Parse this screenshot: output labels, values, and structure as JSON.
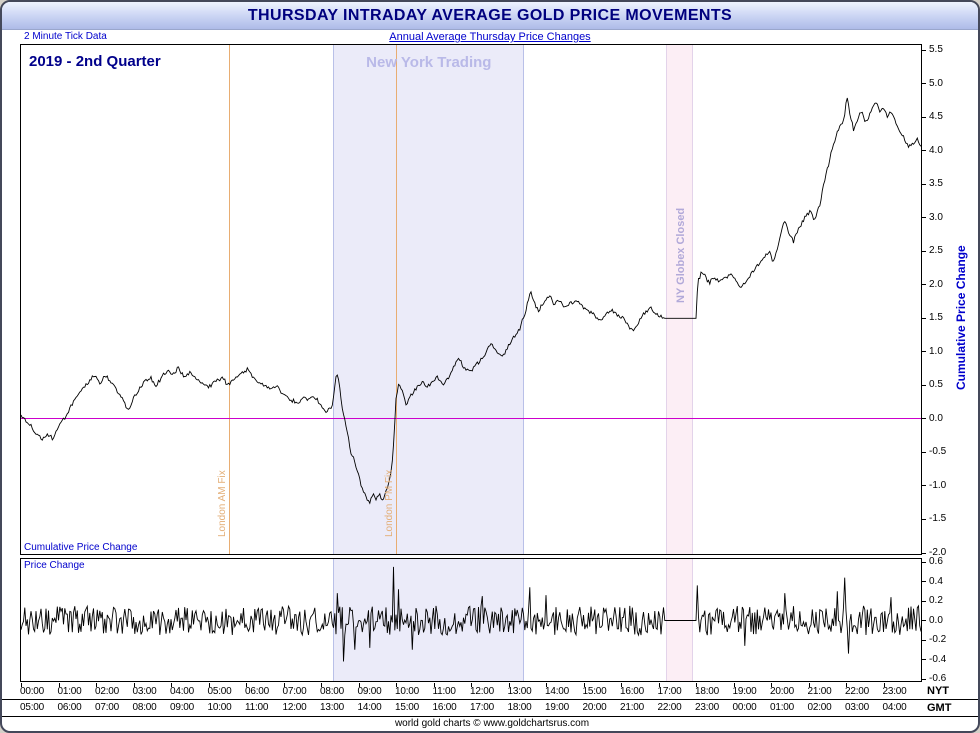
{
  "title": "THURSDAY INTRADAY AVERAGE GOLD PRICE MOVEMENTS",
  "subtitle_left": "2 Minute Tick Data",
  "subtitle_center": "Annual Average Thursday Price Changes",
  "footer": "world gold charts © www.goldchartsrus.com",
  "labels": {
    "quarter": "2019 - 2nd Quarter",
    "ny_trading": "New York Trading",
    "globex": "NY Globex Closed",
    "london_am": "London AM Fix",
    "london_pm": "London PM Fix",
    "cumulative": "Cumulative Price Change",
    "price_change": "Price Change",
    "right_axis": "Cumulative Price Change",
    "nyt": "NYT",
    "gmt": "GMT"
  },
  "colors": {
    "title_text": "#00007e",
    "subtitle_text": "#0000cc",
    "price_line": "#000000",
    "zero_line": "#cc00cc",
    "ny_band": "#ebebf9",
    "ny_band_border": "#b9c0e8",
    "globex_band": "#fceef5",
    "globex_band_border": "#e3d3ea",
    "globex_text": "#b2a9d9",
    "london_fix_line": "#e8ad72",
    "london_fix_text": "#e3ae77",
    "ny_trading_text": "#b9b9e8",
    "quarter_text": "#00008b",
    "axis_title_text": "#0000cc"
  },
  "chart_data": {
    "type": "line",
    "title": "Thursday Intraday Average Gold Price Movements, 2019 2nd Quarter",
    "x_axis": {
      "unit": "hour",
      "range": [
        0,
        24
      ],
      "nyt_labels": [
        "00:00",
        "01:00",
        "02:00",
        "03:00",
        "04:00",
        "05:00",
        "06:00",
        "07:00",
        "08:00",
        "09:00",
        "10:00",
        "11:00",
        "12:00",
        "13:00",
        "14:00",
        "15:00",
        "16:00",
        "17:00",
        "18:00",
        "19:00",
        "20:00",
        "21:00",
        "22:00",
        "23:00"
      ],
      "gmt_labels": [
        "05:00",
        "06:00",
        "07:00",
        "08:00",
        "09:00",
        "10:00",
        "11:00",
        "12:00",
        "13:00",
        "14:00",
        "15:00",
        "16:00",
        "17:00",
        "18:00",
        "19:00",
        "20:00",
        "21:00",
        "22:00",
        "23:00",
        "00:00",
        "01:00",
        "02:00",
        "03:00",
        "04:00"
      ]
    },
    "regions": {
      "ny_trading": [
        8.33,
        13.42
      ],
      "globex_closed": [
        17.2,
        17.93
      ]
    },
    "vlines": {
      "london_am_fix": 5.55,
      "london_pm_fix": 10.0
    },
    "zero_line": 0.0,
    "main": {
      "ylabel": "Cumulative Price Change",
      "ylim": [
        -2.0,
        5.5
      ],
      "tick_step": 0.5,
      "tick_labels": [
        "5.5",
        "5.0",
        "4.5",
        "4.0",
        "3.5",
        "3.0",
        "2.5",
        "2.0",
        "1.5",
        "1.0",
        "0.5",
        "0.0",
        "-0.5",
        "-1.0",
        "-1.5",
        "-2.0"
      ],
      "series": [
        {
          "name": "cumulative_price_change",
          "jitter": 0.03,
          "jitter_seed": 5,
          "flat": [
            [
              17.15,
              18.0
            ]
          ],
          "points": [
            [
              0,
              0.05
            ],
            [
              0.2,
              -0.05
            ],
            [
              0.35,
              -0.18
            ],
            [
              0.55,
              -0.3
            ],
            [
              0.7,
              -0.22
            ],
            [
              0.85,
              -0.3
            ],
            [
              1.0,
              -0.12
            ],
            [
              1.2,
              0.05
            ],
            [
              1.4,
              0.25
            ],
            [
              1.6,
              0.4
            ],
            [
              1.8,
              0.55
            ],
            [
              1.95,
              0.65
            ],
            [
              2.1,
              0.52
            ],
            [
              2.25,
              0.65
            ],
            [
              2.4,
              0.55
            ],
            [
              2.55,
              0.42
            ],
            [
              2.7,
              0.3
            ],
            [
              2.85,
              0.12
            ],
            [
              3.0,
              0.3
            ],
            [
              3.15,
              0.45
            ],
            [
              3.3,
              0.55
            ],
            [
              3.45,
              0.62
            ],
            [
              3.6,
              0.5
            ],
            [
              3.75,
              0.62
            ],
            [
              3.9,
              0.72
            ],
            [
              4.05,
              0.65
            ],
            [
              4.2,
              0.78
            ],
            [
              4.35,
              0.6
            ],
            [
              4.5,
              0.68
            ],
            [
              4.65,
              0.6
            ],
            [
              4.8,
              0.52
            ],
            [
              5.0,
              0.48
            ],
            [
              5.2,
              0.55
            ],
            [
              5.35,
              0.62
            ],
            [
              5.5,
              0.52
            ],
            [
              5.7,
              0.58
            ],
            [
              5.9,
              0.68
            ],
            [
              6.05,
              0.75
            ],
            [
              6.2,
              0.6
            ],
            [
              6.4,
              0.52
            ],
            [
              6.6,
              0.45
            ],
            [
              6.8,
              0.5
            ],
            [
              7.0,
              0.35
            ],
            [
              7.2,
              0.28
            ],
            [
              7.4,
              0.24
            ],
            [
              7.55,
              0.33
            ],
            [
              7.7,
              0.28
            ],
            [
              7.85,
              0.33
            ],
            [
              8.0,
              0.2
            ],
            [
              8.15,
              0.1
            ],
            [
              8.3,
              0.18
            ],
            [
              8.42,
              0.72
            ],
            [
              8.5,
              0.45
            ],
            [
              8.6,
              0.05
            ],
            [
              8.7,
              -0.2
            ],
            [
              8.8,
              -0.5
            ],
            [
              8.9,
              -0.62
            ],
            [
              9.0,
              -0.85
            ],
            [
              9.1,
              -1.05
            ],
            [
              9.2,
              -1.18
            ],
            [
              9.3,
              -1.28
            ],
            [
              9.38,
              -1.1
            ],
            [
              9.45,
              -1.22
            ],
            [
              9.55,
              -1.12
            ],
            [
              9.65,
              -1.2
            ],
            [
              9.75,
              -1.05
            ],
            [
              9.85,
              -0.85
            ],
            [
              9.92,
              -0.55
            ],
            [
              10.0,
              0.3
            ],
            [
              10.08,
              0.55
            ],
            [
              10.18,
              0.38
            ],
            [
              10.28,
              0.2
            ],
            [
              10.4,
              0.35
            ],
            [
              10.5,
              0.42
            ],
            [
              10.6,
              0.5
            ],
            [
              10.7,
              0.56
            ],
            [
              10.82,
              0.45
            ],
            [
              10.95,
              0.55
            ],
            [
              11.1,
              0.62
            ],
            [
              11.25,
              0.5
            ],
            [
              11.4,
              0.62
            ],
            [
              11.55,
              0.78
            ],
            [
              11.68,
              0.9
            ],
            [
              11.8,
              0.78
            ],
            [
              11.95,
              0.7
            ],
            [
              12.1,
              0.78
            ],
            [
              12.3,
              0.9
            ],
            [
              12.45,
              1.05
            ],
            [
              12.55,
              1.12
            ],
            [
              12.7,
              1.0
            ],
            [
              12.85,
              0.95
            ],
            [
              13.0,
              1.08
            ],
            [
              13.15,
              1.22
            ],
            [
              13.3,
              1.35
            ],
            [
              13.45,
              1.6
            ],
            [
              13.58,
              1.9
            ],
            [
              13.7,
              1.72
            ],
            [
              13.8,
              1.62
            ],
            [
              13.95,
              1.75
            ],
            [
              14.1,
              1.85
            ],
            [
              14.2,
              1.72
            ],
            [
              14.35,
              1.78
            ],
            [
              14.5,
              1.65
            ],
            [
              14.65,
              1.72
            ],
            [
              14.8,
              1.78
            ],
            [
              14.95,
              1.68
            ],
            [
              15.1,
              1.62
            ],
            [
              15.3,
              1.55
            ],
            [
              15.45,
              1.45
            ],
            [
              15.6,
              1.58
            ],
            [
              15.75,
              1.62
            ],
            [
              15.9,
              1.55
            ],
            [
              16.05,
              1.5
            ],
            [
              16.2,
              1.38
            ],
            [
              16.35,
              1.3
            ],
            [
              16.5,
              1.48
            ],
            [
              16.65,
              1.6
            ],
            [
              16.8,
              1.65
            ],
            [
              16.95,
              1.55
            ],
            [
              17.1,
              1.52
            ],
            [
              17.15,
              1.5
            ],
            [
              18.0,
              1.5
            ],
            [
              18.05,
              2.05
            ],
            [
              18.15,
              2.18
            ],
            [
              18.25,
              2.12
            ],
            [
              18.35,
              2.02
            ],
            [
              18.45,
              2.1
            ],
            [
              18.6,
              2.05
            ],
            [
              18.75,
              2.1
            ],
            [
              18.9,
              2.15
            ],
            [
              19.05,
              2.08
            ],
            [
              19.2,
              1.95
            ],
            [
              19.35,
              2.05
            ],
            [
              19.5,
              2.18
            ],
            [
              19.65,
              2.3
            ],
            [
              19.8,
              2.42
            ],
            [
              19.95,
              2.5
            ],
            [
              20.05,
              2.35
            ],
            [
              20.2,
              2.6
            ],
            [
              20.35,
              2.98
            ],
            [
              20.45,
              2.8
            ],
            [
              20.6,
              2.65
            ],
            [
              20.75,
              2.85
            ],
            [
              20.9,
              3.0
            ],
            [
              21.05,
              3.1
            ],
            [
              21.15,
              2.95
            ],
            [
              21.3,
              3.2
            ],
            [
              21.45,
              3.6
            ],
            [
              21.6,
              3.95
            ],
            [
              21.75,
              4.25
            ],
            [
              21.85,
              4.38
            ],
            [
              21.95,
              4.45
            ],
            [
              22.02,
              4.85
            ],
            [
              22.1,
              4.55
            ],
            [
              22.2,
              4.32
            ],
            [
              22.32,
              4.48
            ],
            [
              22.42,
              4.62
            ],
            [
              22.52,
              4.42
            ],
            [
              22.65,
              4.55
            ],
            [
              22.78,
              4.75
            ],
            [
              22.9,
              4.58
            ],
            [
              23.0,
              4.62
            ],
            [
              23.1,
              4.52
            ],
            [
              23.2,
              4.56
            ],
            [
              23.3,
              4.45
            ],
            [
              23.42,
              4.32
            ],
            [
              23.55,
              4.18
            ],
            [
              23.68,
              4.05
            ],
            [
              23.8,
              4.12
            ],
            [
              23.9,
              4.18
            ],
            [
              24.0,
              4.05
            ]
          ]
        }
      ]
    },
    "lower": {
      "ylabel": "Price Change",
      "ylim": [
        -0.6,
        0.6
      ],
      "tick_step": 0.2,
      "tick_labels": [
        "0.6",
        "0.4",
        "0.2",
        "0.0",
        "-0.2",
        "-0.4",
        "-0.6"
      ],
      "series": [
        {
          "name": "price_change_per_tick",
          "noise_amp": 0.15,
          "noise_seed": 11,
          "flat": [
            [
              17.15,
              18.0
            ]
          ],
          "spikes": [
            [
              8.42,
              0.28
            ],
            [
              8.6,
              -0.42
            ],
            [
              8.9,
              -0.3
            ],
            [
              9.3,
              -0.28
            ],
            [
              9.93,
              0.55
            ],
            [
              10.08,
              0.32
            ],
            [
              10.45,
              -0.3
            ],
            [
              12.3,
              0.25
            ],
            [
              13.55,
              0.34
            ],
            [
              14.0,
              0.26
            ],
            [
              18.03,
              0.36
            ],
            [
              19.3,
              -0.26
            ],
            [
              20.35,
              0.28
            ],
            [
              21.75,
              0.3
            ],
            [
              21.95,
              0.44
            ],
            [
              22.05,
              -0.34
            ],
            [
              23.2,
              0.24
            ]
          ]
        }
      ]
    }
  }
}
